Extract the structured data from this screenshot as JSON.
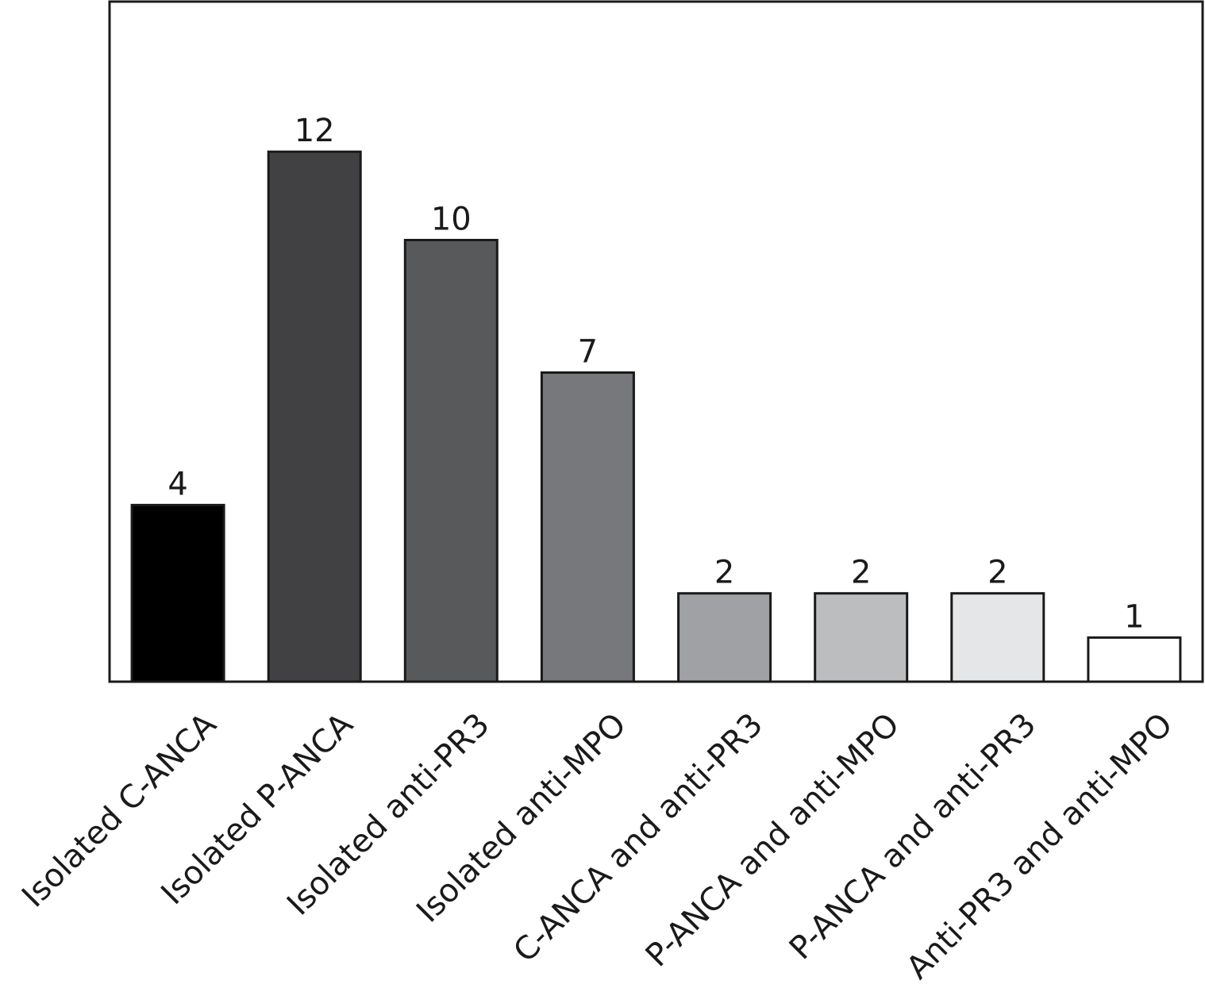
{
  "chart_data": {
    "type": "bar",
    "title": "",
    "xlabel": "",
    "ylabel": "",
    "categories": [
      "Isolated C-ANCA",
      "Isolated P-ANCA",
      "Isolated anti-PR3",
      "Isolated anti-MPO",
      "C-ANCA and anti-PR3",
      "P-ANCA and anti-MPO",
      "P-ANCA and anti-PR3",
      "Anti-PR3 and anti-MPO"
    ],
    "values": [
      4,
      12,
      10,
      7,
      2,
      2,
      2,
      1
    ],
    "value_labels": [
      "4",
      "12",
      "10",
      "7",
      "2",
      "2",
      "2",
      "1"
    ],
    "bar_colors": [
      "#000000",
      "#414143",
      "#58595b",
      "#77787b",
      "#a0a1a4",
      "#bcbdbf",
      "#e5e6e7",
      "#ffffff"
    ],
    "ylim": [
      0,
      15.4
    ],
    "grid": false,
    "legend": "none"
  }
}
